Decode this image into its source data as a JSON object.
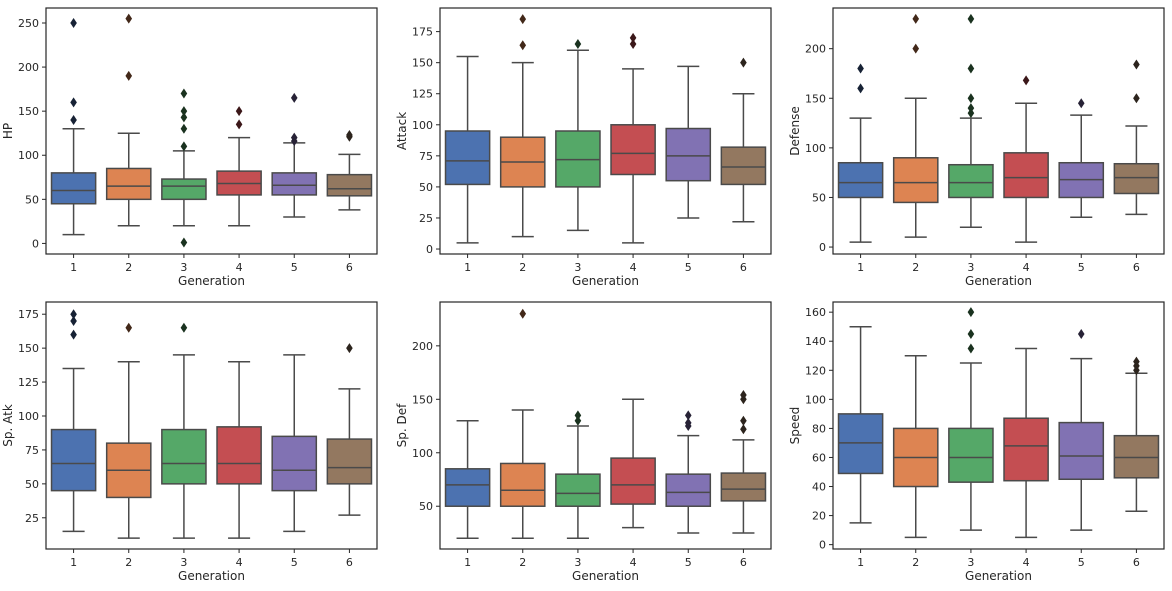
{
  "colors": [
    "#4c72b0",
    "#dd8452",
    "#55a868",
    "#c44e52",
    "#8172b3",
    "#937860"
  ],
  "chart_data": [
    {
      "type": "boxplot",
      "xlabel": "Generation",
      "ylabel": "HP",
      "categories": [
        "1",
        "2",
        "3",
        "4",
        "5",
        "6"
      ],
      "ylim": [
        -12,
        267
      ],
      "yticks": [
        0,
        50,
        100,
        150,
        200,
        250
      ],
      "boxes": [
        {
          "whislo": 10,
          "q1": 45,
          "med": 60,
          "q3": 80,
          "whishi": 130,
          "fliers": [
            140,
            160,
            250
          ]
        },
        {
          "whislo": 20,
          "q1": 50,
          "med": 65,
          "q3": 85,
          "whishi": 125,
          "fliers": [
            190,
            255
          ]
        },
        {
          "whislo": 20,
          "q1": 50,
          "med": 65,
          "q3": 73,
          "whishi": 105,
          "fliers": [
            1,
            110,
            130,
            143,
            150,
            170
          ]
        },
        {
          "whislo": 20,
          "q1": 55,
          "med": 68,
          "q3": 82,
          "whishi": 120,
          "fliers": [
            135,
            150
          ]
        },
        {
          "whislo": 30,
          "q1": 55,
          "med": 66,
          "q3": 80,
          "whishi": 114,
          "fliers": [
            116,
            120,
            165
          ]
        },
        {
          "whislo": 38,
          "q1": 54,
          "med": 62,
          "q3": 78,
          "whishi": 101,
          "fliers": [
            121,
            123
          ]
        }
      ]
    },
    {
      "type": "boxplot",
      "xlabel": "Generation",
      "ylabel": "Attack",
      "categories": [
        "1",
        "2",
        "3",
        "4",
        "5",
        "6"
      ],
      "ylim": [
        -4,
        194
      ],
      "yticks": [
        0,
        25,
        50,
        75,
        100,
        125,
        150,
        175
      ],
      "boxes": [
        {
          "whislo": 5,
          "q1": 52,
          "med": 71,
          "q3": 95,
          "whishi": 155,
          "fliers": []
        },
        {
          "whislo": 10,
          "q1": 50,
          "med": 70,
          "q3": 90,
          "whishi": 150,
          "fliers": [
            164,
            185
          ]
        },
        {
          "whislo": 15,
          "q1": 50,
          "med": 72,
          "q3": 95,
          "whishi": 160,
          "fliers": [
            165
          ]
        },
        {
          "whislo": 5,
          "q1": 60,
          "med": 77,
          "q3": 100,
          "whishi": 145,
          "fliers": [
            165,
            170
          ]
        },
        {
          "whislo": 25,
          "q1": 55,
          "med": 75,
          "q3": 97,
          "whishi": 147,
          "fliers": []
        },
        {
          "whislo": 22,
          "q1": 52,
          "med": 66,
          "q3": 82,
          "whishi": 125,
          "fliers": [
            150
          ]
        }
      ]
    },
    {
      "type": "boxplot",
      "xlabel": "Generation",
      "ylabel": "Defense",
      "categories": [
        "1",
        "2",
        "3",
        "4",
        "5",
        "6"
      ],
      "ylim": [
        -7,
        241
      ],
      "yticks": [
        0,
        50,
        100,
        150,
        200
      ],
      "boxes": [
        {
          "whislo": 5,
          "q1": 50,
          "med": 65,
          "q3": 85,
          "whishi": 130,
          "fliers": [
            160,
            180
          ]
        },
        {
          "whislo": 10,
          "q1": 45,
          "med": 65,
          "q3": 90,
          "whishi": 150,
          "fliers": [
            200,
            230
          ]
        },
        {
          "whislo": 20,
          "q1": 50,
          "med": 65,
          "q3": 83,
          "whishi": 130,
          "fliers": [
            135,
            140,
            150,
            180,
            230
          ]
        },
        {
          "whislo": 5,
          "q1": 50,
          "med": 70,
          "q3": 95,
          "whishi": 145,
          "fliers": [
            168
          ]
        },
        {
          "whislo": 30,
          "q1": 50,
          "med": 68,
          "q3": 85,
          "whishi": 133,
          "fliers": [
            145
          ]
        },
        {
          "whislo": 33,
          "q1": 54,
          "med": 70,
          "q3": 84,
          "whishi": 122,
          "fliers": [
            150,
            184
          ]
        }
      ]
    },
    {
      "type": "boxplot",
      "xlabel": "Generation",
      "ylabel": "Sp. Atk",
      "categories": [
        "1",
        "2",
        "3",
        "4",
        "5",
        "6"
      ],
      "ylim": [
        2,
        184
      ],
      "yticks": [
        25,
        50,
        75,
        100,
        125,
        150,
        175
      ],
      "boxes": [
        {
          "whislo": 15,
          "q1": 45,
          "med": 65,
          "q3": 90,
          "whishi": 135,
          "fliers": [
            160,
            170,
            175
          ]
        },
        {
          "whislo": 10,
          "q1": 40,
          "med": 60,
          "q3": 80,
          "whishi": 140,
          "fliers": [
            165
          ]
        },
        {
          "whislo": 10,
          "q1": 50,
          "med": 65,
          "q3": 90,
          "whishi": 145,
          "fliers": [
            165
          ]
        },
        {
          "whislo": 10,
          "q1": 50,
          "med": 65,
          "q3": 92,
          "whishi": 140,
          "fliers": []
        },
        {
          "whislo": 15,
          "q1": 45,
          "med": 60,
          "q3": 85,
          "whishi": 145,
          "fliers": []
        },
        {
          "whislo": 27,
          "q1": 50,
          "med": 62,
          "q3": 83,
          "whishi": 120,
          "fliers": [
            150
          ]
        }
      ]
    },
    {
      "type": "boxplot",
      "xlabel": "Generation",
      "ylabel": "Sp. Def",
      "categories": [
        "1",
        "2",
        "3",
        "4",
        "5",
        "6"
      ],
      "ylim": [
        10,
        241
      ],
      "yticks": [
        50,
        100,
        150,
        200
      ],
      "boxes": [
        {
          "whislo": 20,
          "q1": 50,
          "med": 70,
          "q3": 85,
          "whishi": 130,
          "fliers": []
        },
        {
          "whislo": 20,
          "q1": 50,
          "med": 65,
          "q3": 90,
          "whishi": 140,
          "fliers": [
            230
          ]
        },
        {
          "whislo": 20,
          "q1": 50,
          "med": 62,
          "q3": 80,
          "whishi": 125,
          "fliers": [
            130,
            135
          ]
        },
        {
          "whislo": 30,
          "q1": 52,
          "med": 70,
          "q3": 95,
          "whishi": 150,
          "fliers": []
        },
        {
          "whislo": 25,
          "q1": 50,
          "med": 63,
          "q3": 80,
          "whishi": 116,
          "fliers": [
            125,
            128,
            135
          ]
        },
        {
          "whislo": 25,
          "q1": 55,
          "med": 66,
          "q3": 81,
          "whishi": 112,
          "fliers": [
            122,
            130,
            150,
            154
          ]
        }
      ]
    },
    {
      "type": "boxplot",
      "xlabel": "Generation",
      "ylabel": "Speed",
      "categories": [
        "1",
        "2",
        "3",
        "4",
        "5",
        "6"
      ],
      "ylim": [
        -3,
        167
      ],
      "yticks": [
        0,
        20,
        40,
        60,
        80,
        100,
        120,
        140,
        160
      ],
      "boxes": [
        {
          "whislo": 15,
          "q1": 49,
          "med": 70,
          "q3": 90,
          "whishi": 150,
          "fliers": []
        },
        {
          "whislo": 5,
          "q1": 40,
          "med": 60,
          "q3": 80,
          "whishi": 130,
          "fliers": []
        },
        {
          "whislo": 10,
          "q1": 43,
          "med": 60,
          "q3": 80,
          "whishi": 125,
          "fliers": [
            135,
            145,
            160
          ]
        },
        {
          "whislo": 5,
          "q1": 44,
          "med": 68,
          "q3": 87,
          "whishi": 135,
          "fliers": []
        },
        {
          "whislo": 10,
          "q1": 45,
          "med": 61,
          "q3": 84,
          "whishi": 128,
          "fliers": [
            145
          ]
        },
        {
          "whislo": 23,
          "q1": 46,
          "med": 60,
          "q3": 75,
          "whishi": 118,
          "fliers": [
            120,
            123,
            126
          ]
        }
      ]
    }
  ]
}
